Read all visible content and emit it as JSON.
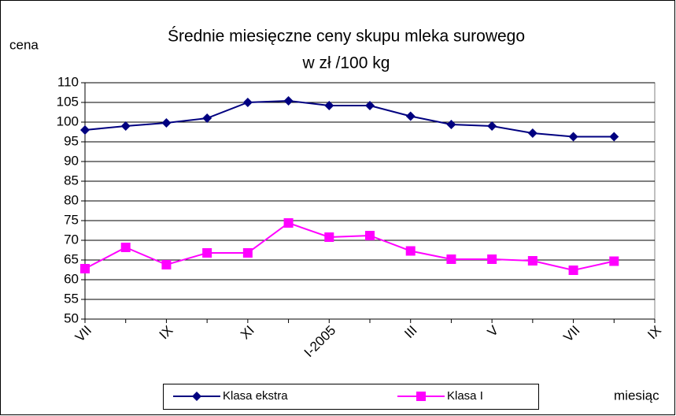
{
  "chart_data": {
    "type": "line",
    "title": "Średnie miesięczne ceny skupu mleka surowego",
    "subtitle": "w zł /100 kg",
    "y_label": "cena",
    "x_label": "miesiąc",
    "categories": [
      "VII",
      null,
      "IX",
      null,
      "XI",
      null,
      "I-2005",
      null,
      "III",
      null,
      "V",
      null,
      "VII",
      null,
      "IX"
    ],
    "series": [
      {
        "name": "Klasa ekstra",
        "color": "#000080",
        "marker": "diamond",
        "values": [
          98,
          99,
          99.8,
          101,
          105,
          105.4,
          104.2,
          104.2,
          101.5,
          99.4,
          99,
          97.2,
          96.3,
          96.3,
          null
        ]
      },
      {
        "name": "Klasa I",
        "color": "#ff00ff",
        "marker": "square",
        "values": [
          62.8,
          68.2,
          63.8,
          66.8,
          66.8,
          74.4,
          70.8,
          71.2,
          67.3,
          65.2,
          65.2,
          64.8,
          62.4,
          64.7,
          null
        ]
      }
    ],
    "ylim": [
      50,
      110
    ],
    "yticks": [
      50,
      55,
      60,
      65,
      70,
      75,
      80,
      85,
      90,
      95,
      100,
      105,
      110
    ],
    "grid": true,
    "legend": "bottom"
  }
}
